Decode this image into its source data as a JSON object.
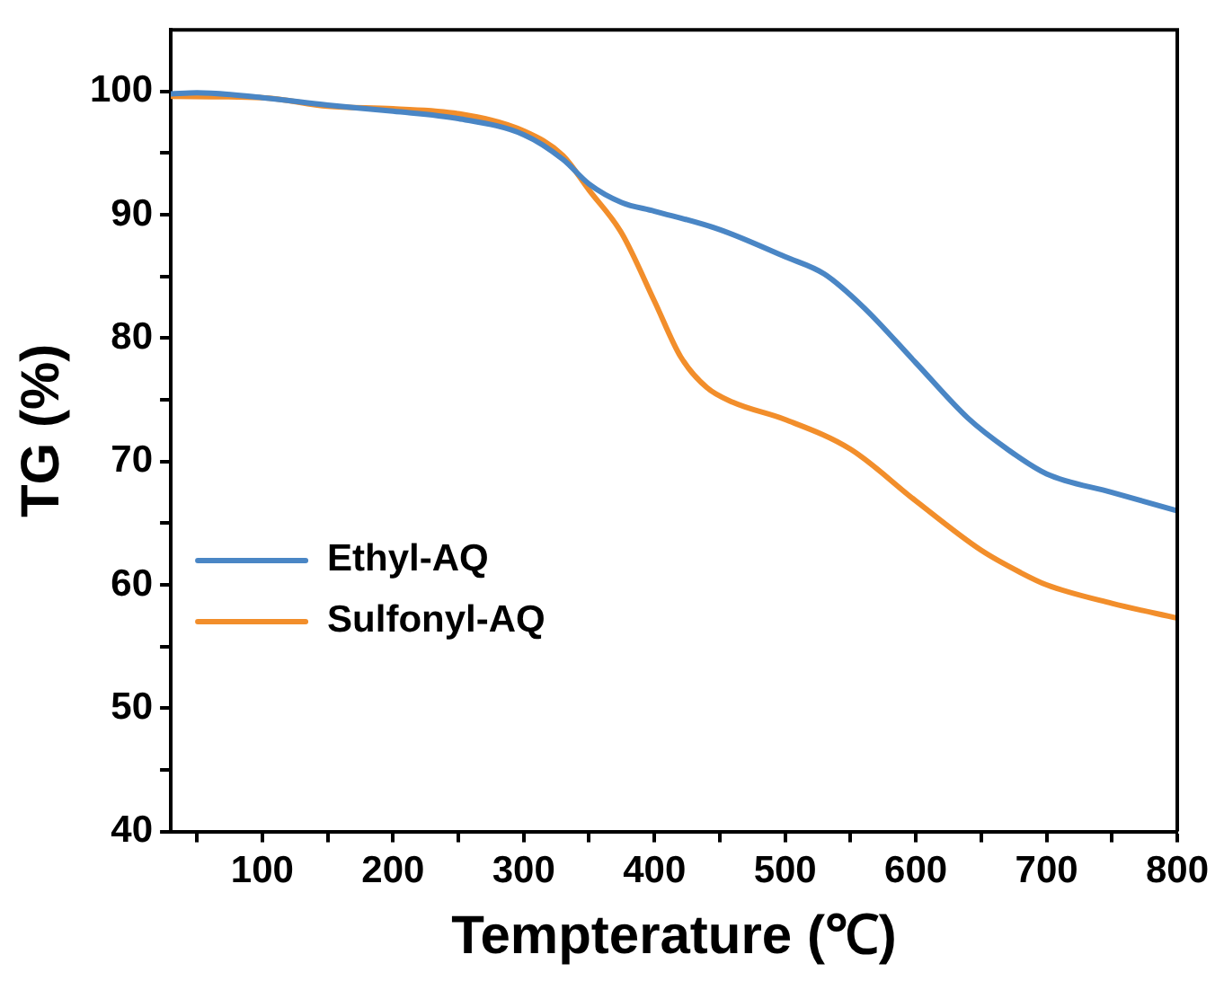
{
  "chart_data": {
    "type": "line",
    "xlabel": "Tempterature (℃)",
    "ylabel": "TG (%)",
    "xlim": [
      30,
      800
    ],
    "ylim": [
      40,
      105
    ],
    "xticks": [
      {
        "value": 50,
        "label": null
      },
      100,
      {
        "value": 150,
        "label": null
      },
      200,
      {
        "value": 250,
        "label": null
      },
      300,
      {
        "value": 350,
        "label": null
      },
      400,
      {
        "value": 450,
        "label": null
      },
      500,
      {
        "value": 550,
        "label": null
      },
      600,
      {
        "value": 650,
        "label": null
      },
      700,
      {
        "value": 750,
        "label": null
      },
      800
    ],
    "yticks": [
      40,
      {
        "value": 45,
        "label": null
      },
      50,
      {
        "value": 55,
        "label": null
      },
      60,
      {
        "value": 65,
        "label": null
      },
      70,
      {
        "value": 75,
        "label": null
      },
      80,
      {
        "value": 85,
        "label": null
      },
      90,
      {
        "value": 95,
        "label": null
      },
      100
    ],
    "grid": false,
    "legend": "center left",
    "marker": "none",
    "line_style": "solid",
    "series": [
      {
        "name": "Ethyl-AQ",
        "color": "#4a86c5",
        "x": [
          30,
          50,
          100,
          150,
          200,
          250,
          300,
          330,
          350,
          375,
          400,
          450,
          500,
          530,
          560,
          600,
          640,
          670,
          700,
          750,
          800
        ],
        "values": [
          99.8,
          99.9,
          99.5,
          98.9,
          98.4,
          97.8,
          96.5,
          94.5,
          92.5,
          91,
          90.3,
          88.8,
          86.6,
          85.2,
          82.5,
          78,
          73.5,
          71,
          69,
          67.5,
          66
        ]
      },
      {
        "name": "Sulfonyl-AQ",
        "color": "#f28e2b",
        "x": [
          30,
          100,
          150,
          200,
          250,
          300,
          330,
          350,
          375,
          400,
          420,
          440,
          460,
          500,
          550,
          600,
          650,
          680,
          700,
          750,
          800
        ],
        "values": [
          99.6,
          99.5,
          98.8,
          98.6,
          98.2,
          96.8,
          94.8,
          92,
          88.5,
          83,
          78.5,
          76,
          74.8,
          73.4,
          71,
          66.8,
          62.8,
          61,
          60,
          58.5,
          57.3
        ]
      }
    ]
  }
}
